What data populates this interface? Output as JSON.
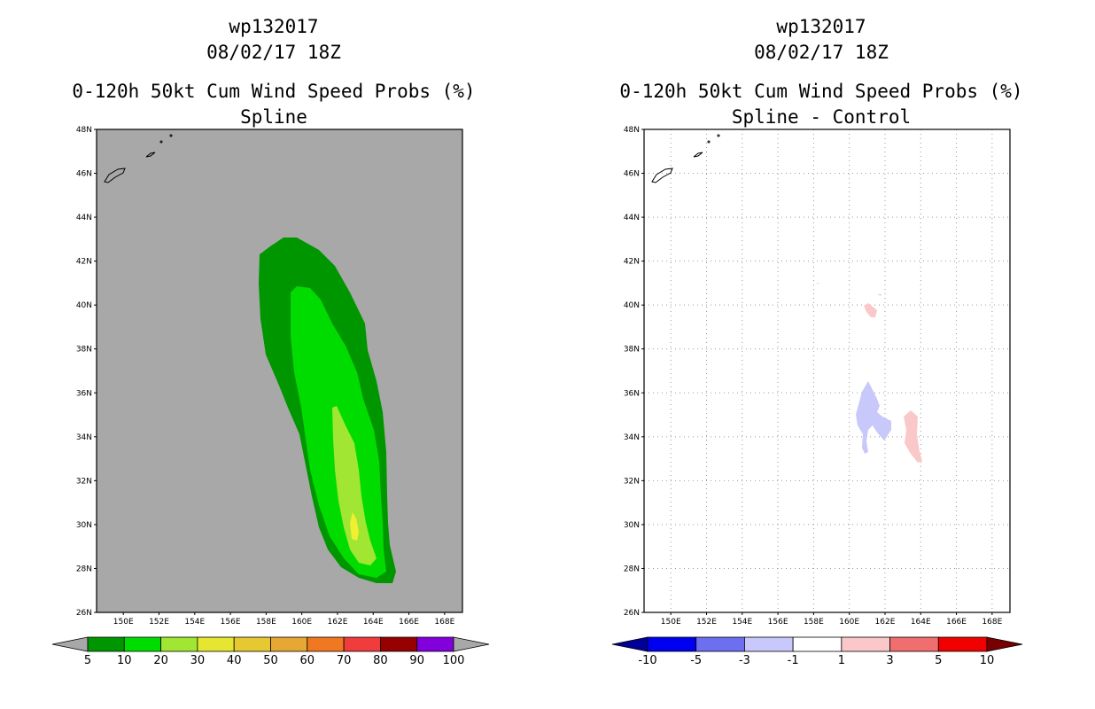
{
  "panels": [
    {
      "storm_id": "wp132017",
      "datetime": "08/02/17 18Z",
      "product": "0-120h 50kt Cum Wind Speed Probs (%)",
      "subtitle": "Spline",
      "lat_labels": [
        "48N",
        "46N",
        "44N",
        "42N",
        "40N",
        "38N",
        "36N",
        "34N",
        "32N",
        "30N",
        "28N",
        "26N"
      ],
      "lon_labels": [
        "150E",
        "152E",
        "154E",
        "156E",
        "158E",
        "160E",
        "162E",
        "164E",
        "166E",
        "168E"
      ],
      "colorbar": {
        "labels": [
          "5",
          "10",
          "20",
          "30",
          "40",
          "50",
          "60",
          "70",
          "80",
          "90",
          "100"
        ],
        "colors": [
          "#a8a8a8",
          "#009600",
          "#00dc00",
          "#a0e632",
          "#e6e632",
          "#e6c832",
          "#e6a832",
          "#f07820",
          "#f03c3c",
          "#960000",
          "#8200dc",
          "#a8a8a8"
        ]
      }
    },
    {
      "storm_id": "wp132017",
      "datetime": "08/02/17 18Z",
      "product": "0-120h 50kt Cum Wind Speed Probs (%)",
      "subtitle": "Spline - Control",
      "lat_labels": [
        "48N",
        "46N",
        "44N",
        "42N",
        "40N",
        "38N",
        "36N",
        "34N",
        "32N",
        "30N",
        "28N",
        "26N"
      ],
      "lon_labels": [
        "150E",
        "152E",
        "154E",
        "156E",
        "158E",
        "160E",
        "162E",
        "164E",
        "166E",
        "168E"
      ],
      "colorbar": {
        "labels": [
          "-10",
          "-5",
          "-3",
          "-1",
          "1",
          "3",
          "5",
          "10"
        ],
        "colors": [
          "#000096",
          "#0000f0",
          "#6e6ef0",
          "#c8c8fa",
          "#ffffff",
          "#fac8c8",
          "#f06e6e",
          "#f00000",
          "#780000"
        ]
      }
    }
  ],
  "colors": {
    "ocean_fill": "#a8a8a8",
    "prob_5_10": "#009600",
    "prob_10_20": "#00dc00",
    "prob_20_30": "#a0e632",
    "prob_30_40": "#f0f032",
    "diff_neg": "#c8c8fa",
    "diff_pos": "#fac8c8"
  }
}
